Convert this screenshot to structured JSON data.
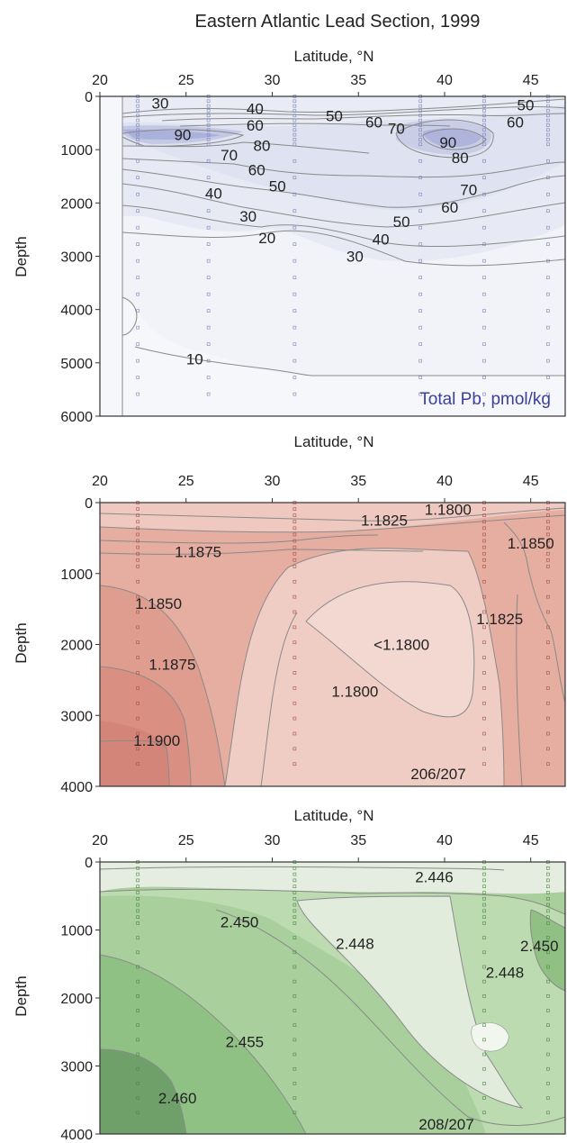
{
  "title": "Eastern Atlantic Lead Section, 1999",
  "colors": {
    "panel1_fill": "#e6e9f3",
    "panel1_accent": "#b9bfe0",
    "panel1_label": "#3b3fa0",
    "panel2_fill": "#e9b2a6",
    "panel2_light": "#efcdc5",
    "panel2_dark": "#d98f82",
    "panel3_fill": "#a9cf9d",
    "panel3_light": "#e5ede1",
    "panel3_dark": "#6fa06a",
    "contour": "#8a8a8a"
  },
  "chart_data": [
    {
      "type": "contour",
      "variable": "Total Pb, pmol/kg",
      "xlabel": "Latitude, °N",
      "ylabel": "Depth",
      "xlim": [
        20,
        47
      ],
      "ylim": [
        6000,
        0
      ],
      "xticks": [
        "20",
        "25",
        "30",
        "35",
        "40",
        "45"
      ],
      "yticks": [
        "0",
        "1000",
        "2000",
        "3000",
        "4000",
        "5000",
        "6000"
      ],
      "station_latitudes": [
        22.2,
        26.3,
        31.3,
        38.6,
        42.3,
        46.0
      ],
      "contour_labels": [
        {
          "text": "30",
          "lat": 23.5,
          "depth": 130
        },
        {
          "text": "40",
          "lat": 29.0,
          "depth": 230
        },
        {
          "text": "50",
          "lat": 33.6,
          "depth": 360
        },
        {
          "text": "60",
          "lat": 35.9,
          "depth": 480
        },
        {
          "text": "70",
          "lat": 37.2,
          "depth": 600
        },
        {
          "text": "50",
          "lat": 44.7,
          "depth": 160
        },
        {
          "text": "60",
          "lat": 44.1,
          "depth": 480
        },
        {
          "text": "60",
          "lat": 29.0,
          "depth": 540
        },
        {
          "text": "90",
          "lat": 24.8,
          "depth": 720
        },
        {
          "text": "80",
          "lat": 29.4,
          "depth": 920
        },
        {
          "text": "70",
          "lat": 27.5,
          "depth": 1100
        },
        {
          "text": "60",
          "lat": 29.1,
          "depth": 1380
        },
        {
          "text": "50",
          "lat": 30.3,
          "depth": 1680
        },
        {
          "text": "40",
          "lat": 26.6,
          "depth": 1820
        },
        {
          "text": "30",
          "lat": 28.6,
          "depth": 2250
        },
        {
          "text": "20",
          "lat": 29.7,
          "depth": 2650
        },
        {
          "text": "90",
          "lat": 40.2,
          "depth": 860
        },
        {
          "text": "80",
          "lat": 40.9,
          "depth": 1150
        },
        {
          "text": "70",
          "lat": 41.4,
          "depth": 1750
        },
        {
          "text": "60",
          "lat": 40.3,
          "depth": 2080
        },
        {
          "text": "50",
          "lat": 37.5,
          "depth": 2350
        },
        {
          "text": "40",
          "lat": 36.3,
          "depth": 2680
        },
        {
          "text": "30",
          "lat": 34.8,
          "depth": 3000
        },
        {
          "text": "10",
          "lat": 25.5,
          "depth": 4930
        }
      ]
    },
    {
      "type": "contour",
      "variable": "206/207",
      "xlabel": "Latitude, °N",
      "ylabel": "Depth",
      "xlim": [
        20,
        47
      ],
      "ylim": [
        4000,
        0
      ],
      "xticks": [
        "20",
        "25",
        "30",
        "35",
        "40",
        "45"
      ],
      "yticks": [
        "0",
        "1000",
        "2000",
        "3000",
        "4000"
      ],
      "station_latitudes": [
        22.2,
        31.3,
        42.3,
        46.0
      ],
      "contour_labels": [
        {
          "text": "1.1800",
          "lat": 40.2,
          "depth": 95
        },
        {
          "text": "1.1825",
          "lat": 36.5,
          "depth": 250
        },
        {
          "text": "1.1875",
          "lat": 25.7,
          "depth": 690
        },
        {
          "text": "1.1850",
          "lat": 45.0,
          "depth": 570
        },
        {
          "text": "1.1850",
          "lat": 23.4,
          "depth": 1420
        },
        {
          "text": "1.1825",
          "lat": 43.2,
          "depth": 1640
        },
        {
          "text": "<1.1800",
          "lat": 37.5,
          "depth": 2000
        },
        {
          "text": "1.1875",
          "lat": 24.2,
          "depth": 2280
        },
        {
          "text": "1.1800",
          "lat": 34.8,
          "depth": 2660
        },
        {
          "text": "1.1900",
          "lat": 23.3,
          "depth": 3350
        }
      ]
    },
    {
      "type": "contour",
      "variable": "208/207",
      "xlabel": "Latitude, °N",
      "ylabel": "Depth",
      "xlim": [
        20,
        47
      ],
      "ylim": [
        4000,
        0
      ],
      "xticks": [
        "20",
        "25",
        "30",
        "35",
        "40",
        "45"
      ],
      "yticks": [
        "0",
        "1000",
        "2000",
        "3000",
        "4000"
      ],
      "station_latitudes": [
        22.2,
        31.3,
        42.3,
        46.0
      ],
      "contour_labels": [
        {
          "text": "2.446",
          "lat": 39.4,
          "depth": 220
        },
        {
          "text": "2.450",
          "lat": 28.1,
          "depth": 880
        },
        {
          "text": "2.448",
          "lat": 34.8,
          "depth": 1200
        },
        {
          "text": "2.450",
          "lat": 45.5,
          "depth": 1230
        },
        {
          "text": "2.448",
          "lat": 43.5,
          "depth": 1620
        },
        {
          "text": "2.455",
          "lat": 28.4,
          "depth": 2640
        },
        {
          "text": "2.460",
          "lat": 24.5,
          "depth": 3470
        }
      ]
    }
  ]
}
